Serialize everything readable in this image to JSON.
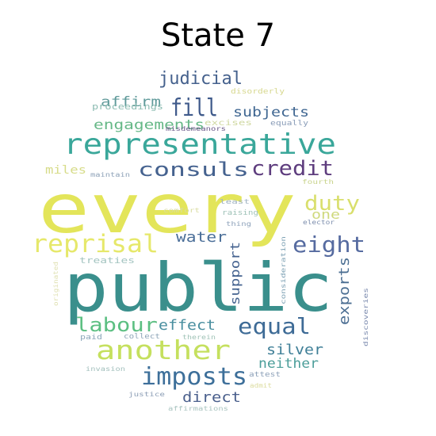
{
  "title": "State 7",
  "words": [
    {
      "text": "every",
      "color": "#e3e55a"
    },
    {
      "text": "public",
      "color": "#3a8f8c"
    },
    {
      "text": "representative",
      "color": "#3aa79a"
    },
    {
      "text": "another",
      "color": "#c5e05e"
    },
    {
      "text": "reprisal",
      "color": "#e6e86a"
    },
    {
      "text": "imposts",
      "color": "#3d6f9a"
    },
    {
      "text": "equal",
      "color": "#3e6b96"
    },
    {
      "text": "labour",
      "color": "#5cbf82"
    },
    {
      "text": "eight",
      "color": "#566ba0"
    },
    {
      "text": "credit",
      "color": "#5e3d7e"
    },
    {
      "text": "consuls",
      "color": "#45628f"
    },
    {
      "text": "fill",
      "color": "#3f5a8b"
    },
    {
      "text": "duty",
      "color": "#d9df6c"
    },
    {
      "text": "judicial",
      "color": "#45618d"
    },
    {
      "text": "engagements",
      "color": "#66b887"
    },
    {
      "text": "subjects",
      "color": "#3f6691"
    },
    {
      "text": "affirm",
      "color": "#5f9a9a"
    },
    {
      "text": "effect",
      "color": "#4a8fa0"
    },
    {
      "text": "water",
      "color": "#4a6e98"
    },
    {
      "text": "silver",
      "color": "#3f7f97"
    },
    {
      "text": "neither",
      "color": "#4c9e9a"
    },
    {
      "text": "direct",
      "color": "#4a5f8c"
    },
    {
      "text": "exports",
      "color": "#4b6e92"
    },
    {
      "text": "support",
      "color": "#44628f"
    },
    {
      "text": "one",
      "color": "#cfd97c"
    },
    {
      "text": "miles",
      "color": "#d7dc8a"
    },
    {
      "text": "proceedings",
      "color": "#8cbcb2"
    },
    {
      "text": "excises",
      "color": "#cfd8a0"
    },
    {
      "text": "treaties",
      "color": "#a3c4c0"
    },
    {
      "text": "disorderly",
      "color": "#d7d88f"
    },
    {
      "text": "equally",
      "color": "#8a9db8"
    },
    {
      "text": "misdemeanors",
      "color": "#6c5a8a"
    },
    {
      "text": "maintain",
      "color": "#8ea2b8"
    },
    {
      "text": "fourth",
      "color": "#c9d48c"
    },
    {
      "text": "least",
      "color": "#9fb2c2"
    },
    {
      "text": "raising",
      "color": "#9fc2b8"
    },
    {
      "text": "comfort",
      "color": "#d9dca0"
    },
    {
      "text": "thing",
      "color": "#8fa3bb"
    },
    {
      "text": "elector",
      "color": "#7e8fae"
    },
    {
      "text": "consideration",
      "color": "#7fa2b5"
    },
    {
      "text": "originated",
      "color": "#dfe0b0"
    },
    {
      "text": "discoveries",
      "color": "#7e8db0"
    },
    {
      "text": "paid",
      "color": "#8aa6b9"
    },
    {
      "text": "collect",
      "color": "#8ea5b8"
    },
    {
      "text": "therein",
      "color": "#a0c3b7"
    },
    {
      "text": "invasion",
      "color": "#a3c0bd"
    },
    {
      "text": "attest",
      "color": "#8da1b9"
    },
    {
      "text": "admit",
      "color": "#dcdc9e"
    },
    {
      "text": "justice",
      "color": "#8d9fb6"
    },
    {
      "text": "affirmations",
      "color": "#a9c4c0"
    }
  ]
}
